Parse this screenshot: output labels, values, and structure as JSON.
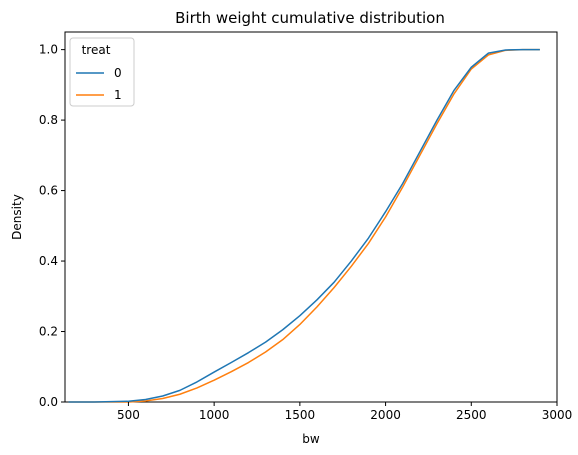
{
  "chart_data": {
    "type": "line",
    "title": "Birth weight cumulative distribution",
    "xlabel": "bw",
    "ylabel": "Density",
    "xlim": [
      130,
      3000
    ],
    "ylim": [
      0,
      1.05
    ],
    "xticks": [
      500,
      1000,
      1500,
      2000,
      2500,
      3000
    ],
    "yticks": [
      0.0,
      0.2,
      0.4,
      0.6,
      0.8,
      1.0
    ],
    "xtick_labels": [
      "500",
      "1000",
      "1500",
      "2000",
      "2500",
      "3000"
    ],
    "ytick_labels": [
      "0.0",
      "0.2",
      "0.4",
      "0.6",
      "0.8",
      "1.0"
    ],
    "grid": false,
    "legend": {
      "title": "treat",
      "placement": "top-left"
    },
    "series": [
      {
        "name": "0",
        "color": "#1f77b4",
        "points": [
          [
            150,
            0.0
          ],
          [
            300,
            0.0
          ],
          [
            500,
            0.002
          ],
          [
            600,
            0.007
          ],
          [
            700,
            0.017
          ],
          [
            800,
            0.033
          ],
          [
            900,
            0.057
          ],
          [
            1000,
            0.085
          ],
          [
            1100,
            0.112
          ],
          [
            1200,
            0.14
          ],
          [
            1300,
            0.17
          ],
          [
            1400,
            0.205
          ],
          [
            1500,
            0.245
          ],
          [
            1600,
            0.29
          ],
          [
            1700,
            0.34
          ],
          [
            1800,
            0.4
          ],
          [
            1900,
            0.465
          ],
          [
            2000,
            0.54
          ],
          [
            2100,
            0.62
          ],
          [
            2200,
            0.71
          ],
          [
            2300,
            0.8
          ],
          [
            2400,
            0.885
          ],
          [
            2500,
            0.95
          ],
          [
            2600,
            0.99
          ],
          [
            2700,
            0.999
          ],
          [
            2800,
            1.0
          ],
          [
            2900,
            1.0
          ]
        ]
      },
      {
        "name": "1",
        "color": "#ff7f0e",
        "points": [
          [
            150,
            0.0
          ],
          [
            300,
            0.0
          ],
          [
            500,
            0.0
          ],
          [
            600,
            0.003
          ],
          [
            700,
            0.01
          ],
          [
            800,
            0.022
          ],
          [
            900,
            0.04
          ],
          [
            1000,
            0.062
          ],
          [
            1100,
            0.086
          ],
          [
            1200,
            0.112
          ],
          [
            1300,
            0.142
          ],
          [
            1400,
            0.177
          ],
          [
            1500,
            0.22
          ],
          [
            1600,
            0.27
          ],
          [
            1700,
            0.325
          ],
          [
            1800,
            0.385
          ],
          [
            1900,
            0.45
          ],
          [
            2000,
            0.525
          ],
          [
            2100,
            0.61
          ],
          [
            2200,
            0.7
          ],
          [
            2300,
            0.79
          ],
          [
            2400,
            0.875
          ],
          [
            2500,
            0.945
          ],
          [
            2600,
            0.985
          ],
          [
            2700,
            0.998
          ],
          [
            2800,
            1.0
          ],
          [
            2900,
            1.0
          ]
        ]
      }
    ]
  }
}
